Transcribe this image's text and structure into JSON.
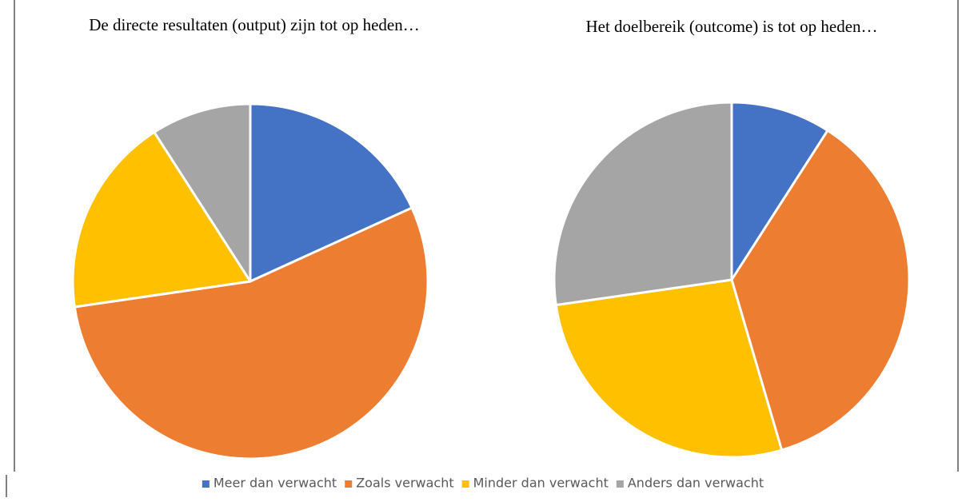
{
  "chart_data": [
    {
      "type": "pie",
      "title": "De directe resultaten (output) zijn tot op heden…",
      "categories": [
        "Meer dan verwacht",
        "Zoals verwacht",
        "Minder dan verwacht",
        "Anders dan verwacht"
      ],
      "values": [
        18.2,
        54.5,
        18.2,
        9.1
      ],
      "colors": [
        "#4472c4",
        "#ed7d31",
        "#ffc000",
        "#a5a5a5"
      ]
    },
    {
      "type": "pie",
      "title": "Het doelbereik (outcome) is tot op heden…",
      "categories": [
        "Meer dan verwacht",
        "Zoals verwacht",
        "Minder dan verwacht",
        "Anders dan verwacht"
      ],
      "values": [
        9.1,
        36.4,
        27.3,
        27.3
      ],
      "colors": [
        "#4472c4",
        "#ed7d31",
        "#ffc000",
        "#a5a5a5"
      ]
    }
  ]
}
